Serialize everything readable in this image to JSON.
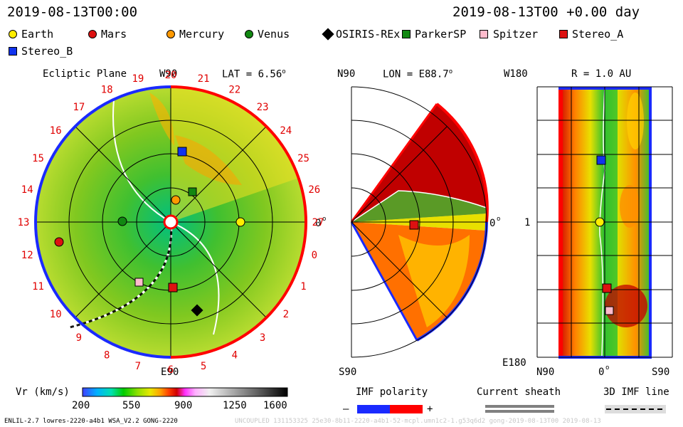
{
  "header": {
    "left_time": "2019-08-13T00:00",
    "right_time": "2019-08-13T00 +0.00 day"
  },
  "legend": [
    {
      "name": "Earth",
      "shape": "circle",
      "color": "#ffee00"
    },
    {
      "name": "Mars",
      "shape": "circle",
      "color": "#dd1111"
    },
    {
      "name": "Mercury",
      "shape": "circle",
      "color": "#ff9900"
    },
    {
      "name": "Venus",
      "shape": "circle",
      "color": "#118811"
    },
    {
      "name": "OSIRIS-REx",
      "shape": "diamond",
      "color": "#000000"
    },
    {
      "name": "ParkerSP",
      "shape": "square",
      "color": "#118811"
    },
    {
      "name": "Spitzer",
      "shape": "square",
      "color": "#ffbbcc"
    },
    {
      "name": "Stereo_A",
      "shape": "square",
      "color": "#dd1111"
    },
    {
      "name": "Stereo_B",
      "shape": "square",
      "color": "#1133ee"
    }
  ],
  "panels": {
    "ecliptic": {
      "title": "Ecliptic Plane",
      "lat": "LAT = 6.56",
      "deg": "o",
      "top": "W90",
      "bottom": "E90",
      "right": "0",
      "right_deg": "o",
      "sectors": [
        "20",
        "21",
        "22",
        "23",
        "24",
        "25",
        "26",
        "27",
        "0",
        "1",
        "2",
        "3",
        "4",
        "5",
        "6",
        "7",
        "8",
        "9",
        "10",
        "11",
        "12",
        "13",
        "14",
        "15",
        "16",
        "17",
        "18",
        "19"
      ]
    },
    "meridional": {
      "lon": "LON = E88.7",
      "deg": "o",
      "top": "N90",
      "bottom": "S90",
      "right": "0",
      "right_deg": "o"
    },
    "radial": {
      "r": "R = 1.0 AU",
      "top": "W180",
      "bottom": "E180",
      "mid": "1",
      "xleft": "N90",
      "xmid": "0",
      "xmid_deg": "o",
      "xright": "S90"
    }
  },
  "colorbar": {
    "label": "Vr (km/s)",
    "ticks": [
      "200",
      "550",
      "900",
      "1250",
      "1600"
    ],
    "colors": [
      "#4040ff",
      "#00b0ff",
      "#00e0b0",
      "#00cc00",
      "#90e000",
      "#e8e800",
      "#ffa000",
      "#ff4000",
      "#d00000",
      "#ff30ff",
      "#ffb0ff",
      "#f0f0f0",
      "#a0a0a0",
      "#505050",
      "#000000"
    ]
  },
  "imf": {
    "label": "IMF polarity",
    "minus": "–",
    "plus": "+"
  },
  "sheath": {
    "label": "Current sheath"
  },
  "imfline": {
    "label": "3D IMF line"
  },
  "footer": {
    "left": "ENLIL-2.7 lowres-2220-a4b1 WSA_V2.2 GONG-2220",
    "right": "UNCOUPLED 131153325 25e30-8b11-2220-a4b1-52-mcpl.umn1c2-1.g53q6d2 gong-2019-08-13T00  2019-08-13"
  },
  "chart_data": [
    {
      "type": "heatmap",
      "title": "Ecliptic Plane",
      "subtitle": "LAT = 6.56",
      "units": "Vr (km/s)",
      "range": [
        200,
        1600
      ],
      "sectors": [
        "20",
        "21",
        "22",
        "23",
        "24",
        "25",
        "26",
        "27",
        "0",
        "1",
        "2",
        "3",
        "4",
        "5",
        "6",
        "7",
        "8",
        "9",
        "10",
        "11",
        "12",
        "13",
        "14",
        "15",
        "16",
        "17",
        "18",
        "19"
      ]
    },
    {
      "type": "heatmap",
      "title": "LON = E88.7",
      "units": "Vr (km/s)",
      "range": [
        200,
        1600
      ]
    },
    {
      "type": "heatmap",
      "title": "R = 1.0 AU",
      "units": "Vr (km/s)",
      "range": [
        200,
        1600
      ]
    }
  ]
}
